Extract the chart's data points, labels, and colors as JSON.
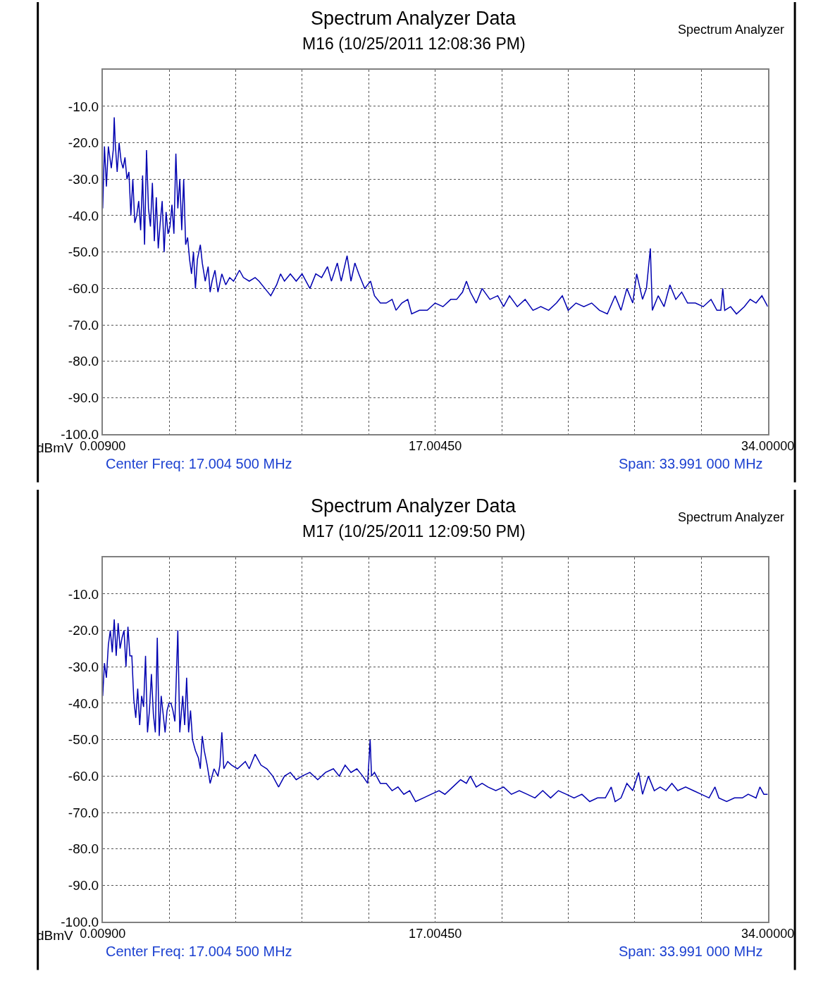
{
  "chart_data": [
    {
      "type": "line",
      "title": "Spectrum Analyzer Data",
      "subtitle": "M16 (10/25/2011 12:08:36 PM)",
      "ylabel": "dBmV",
      "annotations": [
        "Spectrum Analyzer",
        "Center Freq: 17.004 500 MHz",
        "Span: 33.991 000 MHz"
      ],
      "xlim": [
        0.009,
        34.0
      ],
      "ylim": [
        -100,
        0
      ],
      "xticks": [
        {
          "value": 0.009,
          "label": "0.00900"
        },
        {
          "value": 3.4081,
          "label": null
        },
        {
          "value": 6.8072,
          "label": null
        },
        {
          "value": 10.2063,
          "label": null
        },
        {
          "value": 13.6054,
          "label": null
        },
        {
          "value": 17.0045,
          "label": "17.00450"
        },
        {
          "value": 20.4036,
          "label": null
        },
        {
          "value": 23.8027,
          "label": null
        },
        {
          "value": 27.2018,
          "label": null
        },
        {
          "value": 30.6009,
          "label": null
        },
        {
          "value": 34.0,
          "label": "34.00000"
        }
      ],
      "yticks": [
        {
          "value": -100,
          "label": "-100.0"
        },
        {
          "value": -90,
          "label": "-90.0"
        },
        {
          "value": -80,
          "label": "-80.0"
        },
        {
          "value": -70,
          "label": "-70.0"
        },
        {
          "value": -60,
          "label": "-60.0"
        },
        {
          "value": -50,
          "label": "-50.0"
        },
        {
          "value": -40,
          "label": "-40.0"
        },
        {
          "value": -30,
          "label": "-30.0"
        },
        {
          "value": -20,
          "label": "-20.0"
        },
        {
          "value": -10,
          "label": "-10.0"
        },
        {
          "value": 0,
          "label": null
        }
      ],
      "grid": true,
      "line_style": "solid",
      "marker": "none",
      "series": [
        {
          "color": "#0000b0",
          "x": [
            0.01,
            0.1,
            0.2,
            0.3,
            0.45,
            0.55,
            0.6,
            0.65,
            0.75,
            0.85,
            0.95,
            1.05,
            1.15,
            1.25,
            1.35,
            1.45,
            1.55,
            1.65,
            1.75,
            1.85,
            1.95,
            2.05,
            2.15,
            2.25,
            2.35,
            2.45,
            2.55,
            2.65,
            2.75,
            2.85,
            2.95,
            3.05,
            3.15,
            3.25,
            3.35,
            3.45,
            3.55,
            3.65,
            3.75,
            3.85,
            3.95,
            4.05,
            4.15,
            4.25,
            4.35,
            4.45,
            4.55,
            4.65,
            4.75,
            4.85,
            5.0,
            5.1,
            5.25,
            5.4,
            5.5,
            5.6,
            5.75,
            5.9,
            6.1,
            6.3,
            6.5,
            6.7,
            7.0,
            7.2,
            7.5,
            7.8,
            8.0,
            8.3,
            8.6,
            8.9,
            9.1,
            9.3,
            9.6,
            9.9,
            10.2,
            10.6,
            10.9,
            11.2,
            11.5,
            11.7,
            12.0,
            12.2,
            12.5,
            12.7,
            12.9,
            13.1,
            13.4,
            13.7,
            13.9,
            14.2,
            14.5,
            14.8,
            15.0,
            15.3,
            15.6,
            15.8,
            16.2,
            16.6,
            17.0,
            17.4,
            17.8,
            18.1,
            18.4,
            18.6,
            18.8,
            19.1,
            19.4,
            19.8,
            20.2,
            20.5,
            20.8,
            21.2,
            21.6,
            22.0,
            22.4,
            22.8,
            23.2,
            23.5,
            23.8,
            24.2,
            24.6,
            25.0,
            25.4,
            25.8,
            26.2,
            26.5,
            26.8,
            27.1,
            27.3,
            27.6,
            27.8,
            28.0,
            28.1,
            28.4,
            28.7,
            29.0,
            29.3,
            29.6,
            29.9,
            30.3,
            30.7,
            31.1,
            31.4,
            31.6,
            31.7,
            31.8,
            32.1,
            32.4,
            32.8,
            33.1,
            33.4,
            33.7,
            34.0
          ],
          "values": [
            -38,
            -21,
            -32,
            -21,
            -27,
            -22,
            -13,
            -20,
            -28,
            -20,
            -25,
            -27,
            -24,
            -30,
            -28,
            -40,
            -30,
            -42,
            -40,
            -36,
            -44,
            -29,
            -48,
            -22,
            -38,
            -43,
            -31,
            -47,
            -35,
            -49,
            -42,
            -36,
            -50,
            -39,
            -45,
            -43,
            -37,
            -45,
            -23,
            -38,
            -30,
            -44,
            -30,
            -48,
            -46,
            -52,
            -56,
            -50,
            -60,
            -52,
            -48,
            -53,
            -58,
            -54,
            -61,
            -58,
            -55,
            -61,
            -56,
            -59,
            -57,
            -58,
            -55,
            -57,
            -58,
            -57,
            -58,
            -60,
            -62,
            -59,
            -56,
            -58,
            -56,
            -58,
            -56,
            -60,
            -56,
            -57,
            -54,
            -58,
            -53,
            -58,
            -51,
            -58,
            -53,
            -56,
            -60,
            -58,
            -62,
            -64,
            -64,
            -63,
            -66,
            -64,
            -63,
            -67,
            -66,
            -66,
            -64,
            -65,
            -63,
            -63,
            -61,
            -58,
            -61,
            -64,
            -60,
            -63,
            -62,
            -65,
            -62,
            -65,
            -63,
            -66,
            -65,
            -66,
            -64,
            -62,
            -66,
            -64,
            -65,
            -64,
            -66,
            -67,
            -62,
            -66,
            -60,
            -64,
            -56,
            -63,
            -60,
            -49,
            -66,
            -62,
            -65,
            -59,
            -63,
            -61,
            -64,
            -64,
            -65,
            -63,
            -66,
            -66,
            -60,
            -66,
            -65,
            -67,
            -65,
            -63,
            -64,
            -62,
            -65
          ]
        }
      ]
    },
    {
      "type": "line",
      "title": "Spectrum Analyzer Data",
      "subtitle": "M17 (10/25/2011 12:09:50 PM)",
      "ylabel": "dBmV",
      "annotations": [
        "Spectrum Analyzer",
        "Center Freq: 17.004 500 MHz",
        "Span: 33.991 000 MHz"
      ],
      "xlim": [
        0.009,
        34.0
      ],
      "ylim": [
        -100,
        0
      ],
      "xticks": [
        {
          "value": 0.009,
          "label": "0.00900"
        },
        {
          "value": 3.4081,
          "label": null
        },
        {
          "value": 6.8072,
          "label": null
        },
        {
          "value": 10.2063,
          "label": null
        },
        {
          "value": 13.6054,
          "label": null
        },
        {
          "value": 17.0045,
          "label": "17.00450"
        },
        {
          "value": 20.4036,
          "label": null
        },
        {
          "value": 23.8027,
          "label": null
        },
        {
          "value": 27.2018,
          "label": null
        },
        {
          "value": 30.6009,
          "label": null
        },
        {
          "value": 34.0,
          "label": "34.00000"
        }
      ],
      "yticks": [
        {
          "value": -100,
          "label": "-100.0"
        },
        {
          "value": -90,
          "label": "-90.0"
        },
        {
          "value": -80,
          "label": "-80.0"
        },
        {
          "value": -70,
          "label": "-70.0"
        },
        {
          "value": -60,
          "label": "-60.0"
        },
        {
          "value": -50,
          "label": "-50.0"
        },
        {
          "value": -40,
          "label": "-40.0"
        },
        {
          "value": -30,
          "label": "-30.0"
        },
        {
          "value": -20,
          "label": "-20.0"
        },
        {
          "value": -10,
          "label": "-10.0"
        },
        {
          "value": 0,
          "label": null
        }
      ],
      "grid": true,
      "line_style": "solid",
      "marker": "none",
      "series": [
        {
          "color": "#0000b0",
          "x": [
            0.01,
            0.1,
            0.2,
            0.3,
            0.4,
            0.5,
            0.6,
            0.7,
            0.8,
            0.9,
            1.0,
            1.1,
            1.2,
            1.3,
            1.4,
            1.5,
            1.6,
            1.7,
            1.8,
            1.9,
            2.0,
            2.1,
            2.2,
            2.3,
            2.4,
            2.5,
            2.6,
            2.7,
            2.8,
            2.9,
            3.0,
            3.1,
            3.2,
            3.3,
            3.4,
            3.5,
            3.6,
            3.7,
            3.85,
            3.95,
            4.1,
            4.2,
            4.3,
            4.4,
            4.5,
            4.6,
            4.75,
            4.9,
            5.0,
            5.1,
            5.2,
            5.35,
            5.5,
            5.7,
            5.9,
            6.0,
            6.1,
            6.2,
            6.4,
            6.6,
            6.9,
            7.3,
            7.5,
            7.8,
            8.1,
            8.4,
            8.7,
            9.0,
            9.3,
            9.6,
            9.9,
            10.2,
            10.6,
            11.0,
            11.4,
            11.8,
            12.1,
            12.4,
            12.7,
            13.0,
            13.3,
            13.55,
            13.68,
            13.75,
            13.9,
            14.2,
            14.5,
            14.8,
            15.1,
            15.4,
            15.7,
            16.0,
            16.4,
            16.8,
            17.2,
            17.5,
            17.9,
            18.3,
            18.6,
            18.8,
            19.1,
            19.4,
            19.7,
            20.1,
            20.5,
            20.9,
            21.3,
            21.7,
            22.1,
            22.5,
            22.9,
            23.3,
            23.7,
            24.1,
            24.5,
            24.9,
            25.3,
            25.7,
            26.0,
            26.2,
            26.5,
            26.8,
            27.1,
            27.4,
            27.6,
            27.9,
            28.2,
            28.5,
            28.8,
            29.1,
            29.4,
            29.8,
            30.2,
            30.6,
            31.0,
            31.3,
            31.5,
            31.9,
            32.3,
            32.7,
            33.0,
            33.4,
            33.6,
            33.8,
            34.0
          ],
          "values": [
            -38,
            -29,
            -33,
            -24,
            -20,
            -26,
            -17,
            -27,
            -18,
            -25,
            -22,
            -20,
            -30,
            -19,
            -27,
            -27,
            -39,
            -44,
            -36,
            -46,
            -38,
            -41,
            -27,
            -48,
            -42,
            -32,
            -43,
            -48,
            -22,
            -49,
            -38,
            -43,
            -48,
            -42,
            -40,
            -40,
            -42,
            -45,
            -20,
            -48,
            -38,
            -46,
            -33,
            -48,
            -42,
            -50,
            -53,
            -55,
            -58,
            -49,
            -53,
            -57,
            -62,
            -58,
            -60,
            -57,
            -48,
            -58,
            -56,
            -57,
            -58,
            -56,
            -58,
            -54,
            -57,
            -58,
            -60,
            -63,
            -60,
            -59,
            -61,
            -60,
            -59,
            -61,
            -59,
            -58,
            -60,
            -57,
            -59,
            -58,
            -60,
            -62,
            -50,
            -60,
            -59,
            -62,
            -62,
            -64,
            -63,
            -65,
            -64,
            -67,
            -66,
            -65,
            -64,
            -65,
            -63,
            -61,
            -62,
            -60,
            -63,
            -62,
            -63,
            -64,
            -63,
            -65,
            -64,
            -65,
            -66,
            -64,
            -66,
            -64,
            -65,
            -66,
            -65,
            -67,
            -66,
            -66,
            -63,
            -67,
            -66,
            -62,
            -64,
            -59,
            -65,
            -60,
            -64,
            -63,
            -64,
            -62,
            -64,
            -63,
            -64,
            -65,
            -66,
            -63,
            -66,
            -67,
            -66,
            -66,
            -65,
            -66,
            -63,
            -65,
            -65
          ]
        }
      ]
    }
  ]
}
